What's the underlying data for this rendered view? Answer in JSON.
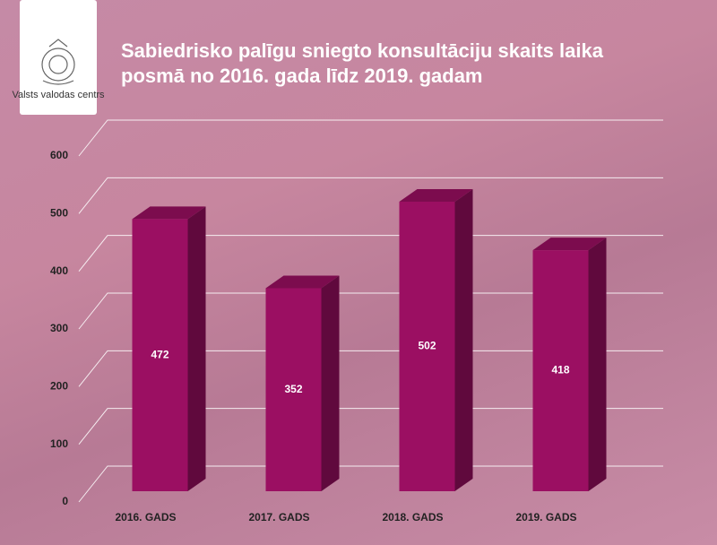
{
  "header": {
    "logo_text": "Valsts valodas centrs"
  },
  "chart_data": {
    "type": "bar3d",
    "title": "Sabiedrisko palīgu sniegto konsultāciju skaits laika posmā no 2016. gada līdz 2019. gadam",
    "categories": [
      "2016. GADS",
      "2017. GADS",
      "2018. GADS",
      "2019. GADS"
    ],
    "values": [
      472,
      352,
      502,
      418
    ],
    "color": "#9b0f62",
    "ylim": [
      0,
      600
    ],
    "yticks": [
      0,
      100,
      200,
      300,
      400,
      500,
      600
    ],
    "grid": true
  }
}
